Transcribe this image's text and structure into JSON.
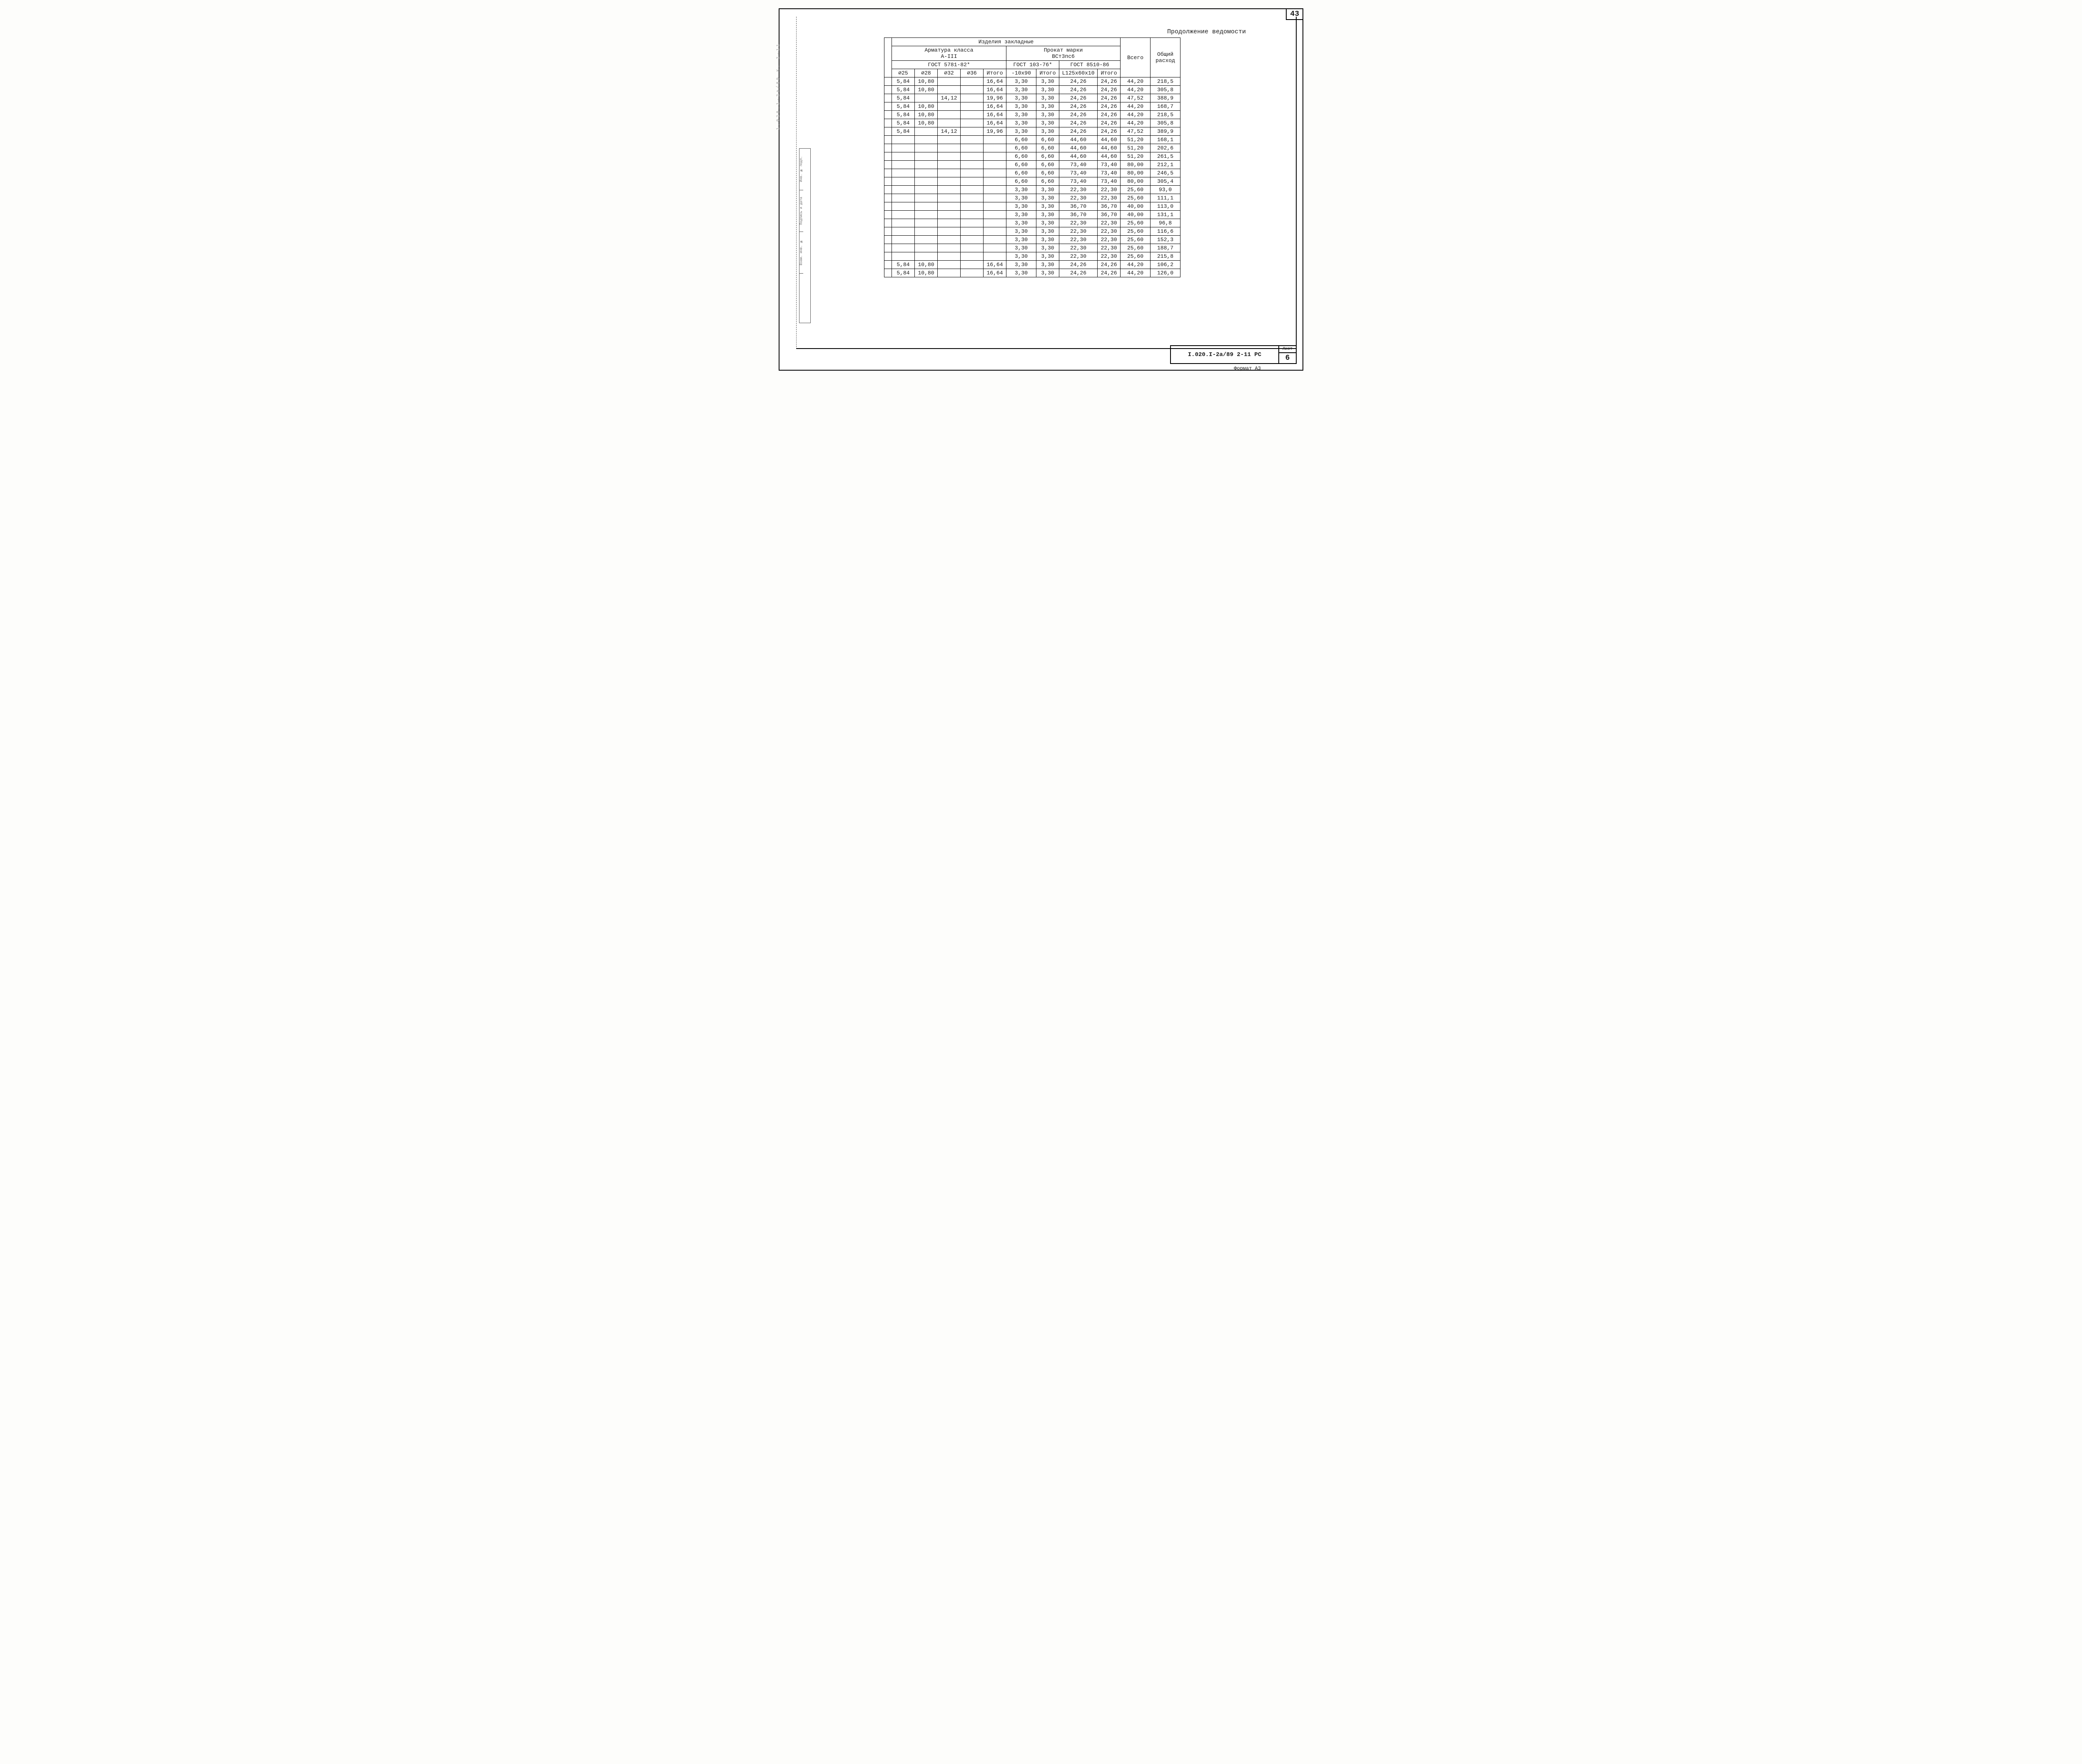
{
  "page_number": "43",
  "continuation_label": "Продолжение ведомости",
  "header": {
    "super": "Изделия закладные",
    "left_group": {
      "l1": "Арматура класса",
      "l2": "А-III",
      "l3": "ГОСТ 5781-82*"
    },
    "right_group": {
      "l1": "Прокат марки",
      "l2": "ВСт3пс6",
      "g1": "ГОСТ 103-76*",
      "g2": "ГОСТ 8510-86"
    },
    "vsego": "Всего",
    "total": "Общий расход",
    "cols_left": [
      "⌀25",
      "⌀28",
      "⌀32",
      "⌀36",
      "Итого"
    ],
    "cols_right": [
      "-10х90",
      "Итого",
      "L125х60х10",
      "Итого"
    ]
  },
  "rows": [
    [
      "5,84",
      "10,80",
      "",
      "",
      "16,64",
      "3,30",
      "3,30",
      "24,26",
      "24,26",
      "44,20",
      "218,5"
    ],
    [
      "5,84",
      "10,80",
      "",
      "",
      "16,64",
      "3,30",
      "3,30",
      "24,26",
      "24,26",
      "44,20",
      "305,8"
    ],
    [
      "5,84",
      "",
      "14,12",
      "",
      "19,96",
      "3,30",
      "3,30",
      "24,26",
      "24,26",
      "47,52",
      "388,9"
    ],
    [
      "5,84",
      "10,80",
      "",
      "",
      "16,64",
      "3,30",
      "3,30",
      "24,26",
      "24,26",
      "44,20",
      "168,7"
    ],
    [
      "5,84",
      "10,80",
      "",
      "",
      "16,64",
      "3,30",
      "3,30",
      "24,26",
      "24,26",
      "44,20",
      "218,5"
    ],
    [
      "5,84",
      "10,80",
      "",
      "",
      "16,64",
      "3,30",
      "3,30",
      "24,26",
      "24,26",
      "44,20",
      "305,8"
    ],
    [
      "5,84",
      "",
      "14,12",
      "",
      "19,96",
      "3,30",
      "3,30",
      "24,26",
      "24,26",
      "47,52",
      "389,9"
    ],
    [
      "",
      "",
      "",
      "",
      "",
      "6,60",
      "6,60",
      "44,60",
      "44,60",
      "51,20",
      "168,1"
    ],
    [
      "",
      "",
      "",
      "",
      "",
      "6,60",
      "6,60",
      "44,60",
      "44,60",
      "51,20",
      "202,6"
    ],
    [
      "",
      "",
      "",
      "",
      "",
      "6,60",
      "6,60",
      "44,60",
      "44,60",
      "51,20",
      "261,5"
    ],
    [
      "",
      "",
      "",
      "",
      "",
      "6,60",
      "6,60",
      "73,40",
      "73,40",
      "80,00",
      "212,1"
    ],
    [
      "",
      "",
      "",
      "",
      "",
      "6,60",
      "6,60",
      "73,40",
      "73,40",
      "80,00",
      "246,5"
    ],
    [
      "",
      "",
      "",
      "",
      "",
      "6,60",
      "6,60",
      "73,40",
      "73,40",
      "80,00",
      "305,4"
    ],
    [
      "",
      "",
      "",
      "",
      "",
      "3,30",
      "3,30",
      "22,30",
      "22,30",
      "25,60",
      "93,0"
    ],
    [
      "",
      "",
      "",
      "",
      "",
      "3,30",
      "3,30",
      "22,30",
      "22,30",
      "25,60",
      "111,1"
    ],
    [
      "",
      "",
      "",
      "",
      "",
      "3,30",
      "3,30",
      "36,70",
      "36,70",
      "40,00",
      "113,0"
    ],
    [
      "",
      "",
      "",
      "",
      "",
      "3,30",
      "3,30",
      "36,70",
      "36,70",
      "40,00",
      "131,1"
    ],
    [
      "",
      "",
      "",
      "",
      "",
      "3,30",
      "3,30",
      "22,30",
      "22,30",
      "25,60",
      "96,8"
    ],
    [
      "",
      "",
      "",
      "",
      "",
      "3,30",
      "3,30",
      "22,30",
      "22,30",
      "25,60",
      "116,6"
    ],
    [
      "",
      "",
      "",
      "",
      "",
      "3,30",
      "3,30",
      "22,30",
      "22,30",
      "25,60",
      "152,3"
    ],
    [
      "",
      "",
      "",
      "",
      "",
      "3,30",
      "3,30",
      "22,30",
      "22,30",
      "25,60",
      "188,7"
    ],
    [
      "",
      "",
      "",
      "",
      "",
      "3,30",
      "3,30",
      "22,30",
      "22,30",
      "25,60",
      "215,8"
    ],
    [
      "5,84",
      "10,80",
      "",
      "",
      "16,64",
      "3,30",
      "3,30",
      "24,26",
      "24,26",
      "44,20",
      "106,2"
    ],
    [
      "5,84",
      "10,80",
      "",
      "",
      "16,64",
      "3,30",
      "3,30",
      "24,26",
      "24,26",
      "44,20",
      "126,0"
    ]
  ],
  "title_block": {
    "code": "I.020.I-2а/89  2-11  РС",
    "sheet_label": "Лист",
    "sheet_num": "6"
  },
  "format_note": "Формат А3",
  "side_labels": [
    "Инв. № подп.",
    "Подпись и дата",
    "Взам. инв. №",
    ""
  ],
  "faint_side": "1.020.1-2а/89   К. 2-11"
}
